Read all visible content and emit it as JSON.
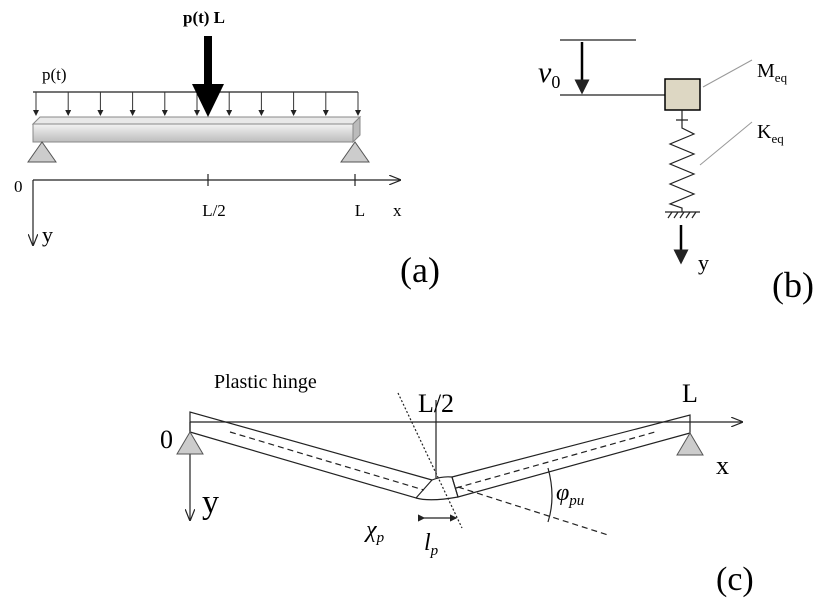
{
  "panel_a": {
    "point_load": "p(t) L",
    "distributed_load": "p(t)",
    "origin": "0",
    "mid": "L/2",
    "end": "L",
    "x_axis": "x",
    "y_axis": "y",
    "label": "(a)"
  },
  "panel_b": {
    "displacement": {
      "base": "v",
      "sub": "0"
    },
    "mass": {
      "base": "M",
      "sub": "eq"
    },
    "stiffness": {
      "base": "K",
      "sub": "eq"
    },
    "y_axis": "y",
    "label": "(b)"
  },
  "panel_c": {
    "hinge": "Plastic hinge",
    "mid": "L/2",
    "end": "L",
    "origin": "0",
    "x_axis": "x",
    "y_axis": "y",
    "curvature": {
      "base": "χ",
      "sub": "p"
    },
    "length": {
      "base": "l",
      "sub": "p"
    },
    "rotation": {
      "base": "φ",
      "sub": "pu"
    },
    "label": "(c)"
  }
}
